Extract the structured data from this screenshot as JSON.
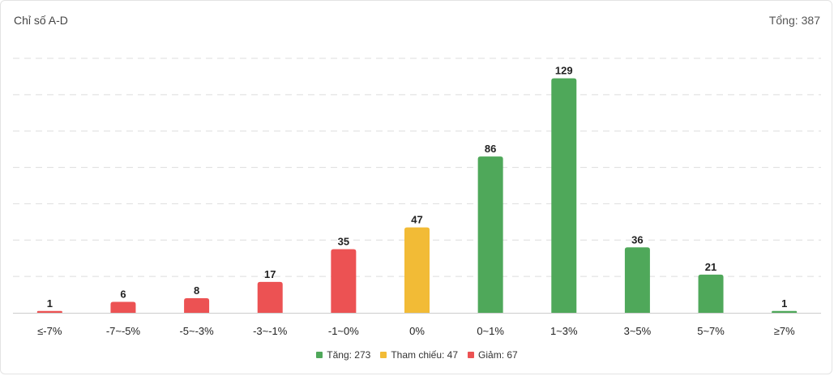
{
  "header": {
    "title": "Chỉ số A-D",
    "total_label": "Tổng:",
    "total_value": "387"
  },
  "colors": {
    "up": "#4fa85a",
    "ref": "#f2bb36",
    "down": "#ec5253",
    "grid": "#dddddd",
    "axis": "#cccccc"
  },
  "legend": [
    {
      "label": "Tăng: 273",
      "color": "#4fa85a"
    },
    {
      "label": "Tham chiếu: 47",
      "color": "#f2bb36"
    },
    {
      "label": "Giảm: 67",
      "color": "#ec5253"
    }
  ],
  "chart_data": {
    "type": "bar",
    "title": "Chỉ số A-D",
    "categories": [
      "≤-7%",
      "-7~-5%",
      "-5~-3%",
      "-3~-1%",
      "-1~0%",
      "0%",
      "0~1%",
      "1~3%",
      "3~5%",
      "5~7%",
      "≥7%"
    ],
    "values": [
      1,
      6,
      8,
      17,
      35,
      47,
      86,
      129,
      36,
      21,
      1
    ],
    "bar_colors": [
      "#ec5253",
      "#ec5253",
      "#ec5253",
      "#ec5253",
      "#ec5253",
      "#f2bb36",
      "#4fa85a",
      "#4fa85a",
      "#4fa85a",
      "#4fa85a",
      "#4fa85a"
    ],
    "ylim": [
      0,
      140
    ],
    "grid": true,
    "data_labels": true,
    "legend_position": "bottom"
  }
}
